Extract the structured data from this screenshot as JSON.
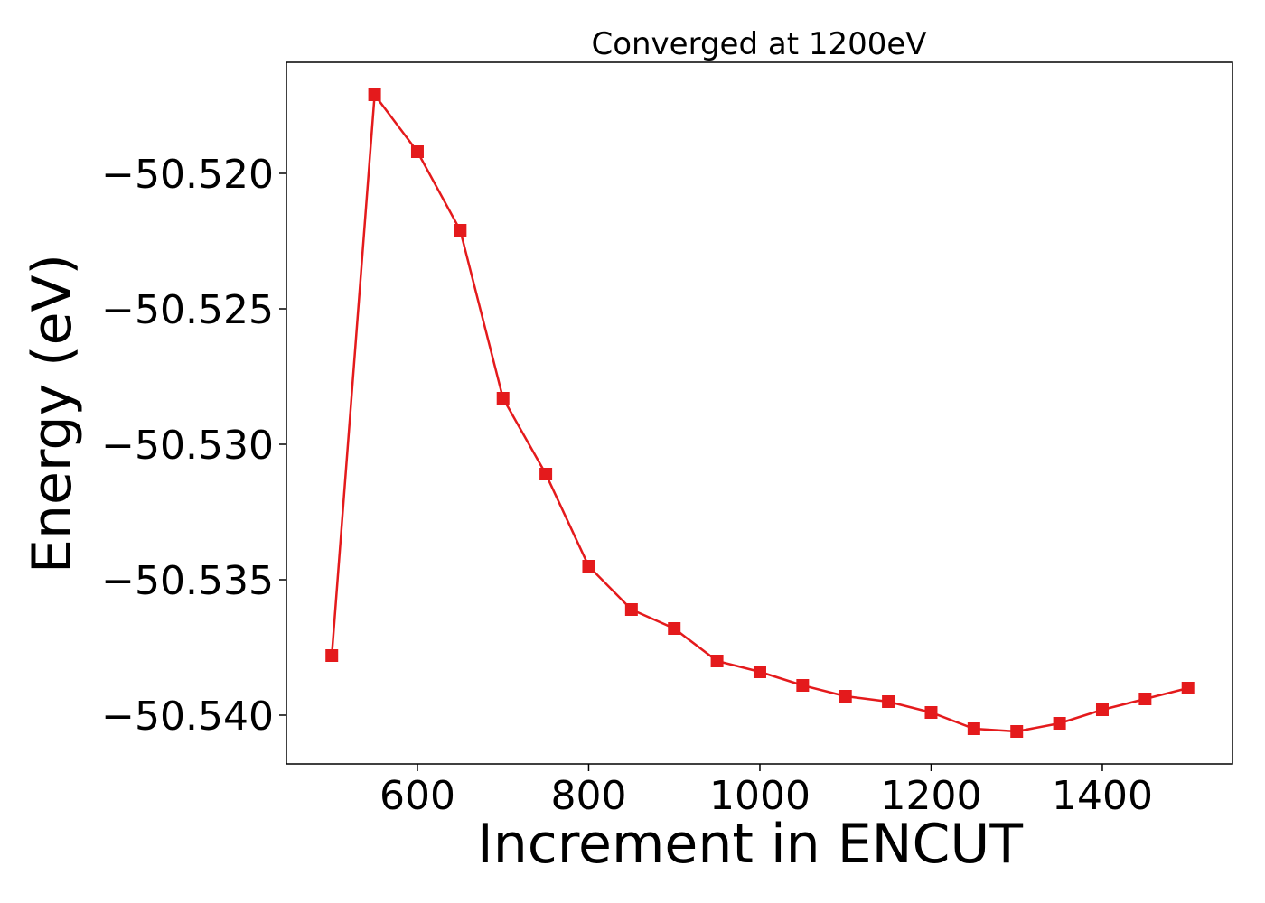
{
  "chart_data": {
    "type": "line",
    "title": "Converged at 1200eV",
    "xlabel": "Increment in ENCUT",
    "ylabel": "Energy (eV)",
    "xlim": [
      447,
      1552
    ],
    "ylim": [
      -50.5418,
      -50.5159
    ],
    "x_ticks": [
      600,
      800,
      1000,
      1200,
      1400
    ],
    "x_tick_labels": [
      "600",
      "800",
      "1000",
      "1200",
      "1400"
    ],
    "y_ticks": [
      -50.52,
      -50.525,
      -50.53,
      -50.535,
      -50.54
    ],
    "y_tick_labels": [
      "−50.520",
      "−50.525",
      "−50.530",
      "−50.535",
      "−50.540"
    ],
    "grid": false,
    "series": [
      {
        "color": "#e41a1c",
        "marker": "square",
        "x": [
          500,
          550,
          600,
          650,
          700,
          750,
          800,
          850,
          900,
          950,
          1000,
          1050,
          1100,
          1150,
          1200,
          1250,
          1300,
          1350,
          1400,
          1450,
          1500
        ],
        "y": [
          -50.5378,
          -50.5171,
          -50.5192,
          -50.5221,
          -50.5283,
          -50.5311,
          -50.5345,
          -50.5361,
          -50.5368,
          -50.538,
          -50.5384,
          -50.5389,
          -50.5393,
          -50.5395,
          -50.5399,
          -50.5405,
          -50.5406,
          -50.5403,
          -50.5398,
          -50.5394,
          -50.539
        ]
      }
    ]
  }
}
